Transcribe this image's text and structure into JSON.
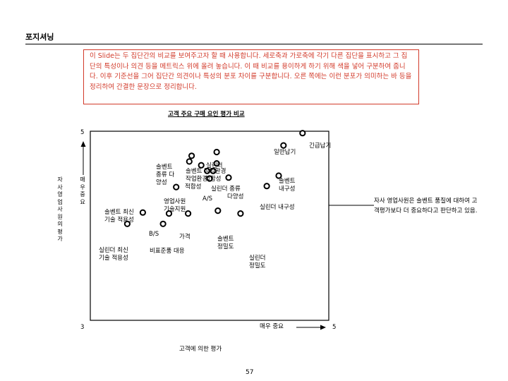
{
  "page": {
    "title": "포지셔닝",
    "note": "이 Slide는 두 집단간의 비교를 보여주고자 할 때 사용합니다. 세로축과 가로축에 각기 다른 집단을 표시하고 그 집단의 특성이나 의견 등을 메트릭스 위에 올려 놓습니다. 이 때 비교를 용이하게 하기 위해 색을 넣어 구분하여 줍니다. 이후 기준선을 그어 집단간 의견이나 특성의 분포 차이를 구분합니다. 오른 쪽에는 이런 분포가 의미하는 바 등을 정리하여 간결한 문장으로 정리합니다.",
    "side_text": "자사 영업사원은 솔벤트 품질에 대하여 고객평가보다 더 중요하다고 판단하고 있음.",
    "page_number": "57"
  },
  "chart_data": {
    "type": "scatter",
    "title": "고객 주요 구매 요인 평가 비교",
    "xlabel": "고객에 의한 평가",
    "ylabel": "자사 영업사원의 평가",
    "x_tick_labels": [
      "3",
      "5"
    ],
    "y_tick_labels": [
      "5",
      "3"
    ],
    "x_axis_marker": "매우 중요",
    "y_axis_marker": "매우 중요",
    "xlim": [
      3,
      5
    ],
    "ylim": [
      3,
      5
    ],
    "points": [
      {
        "x": 4.78,
        "y": 4.98,
        "label": "긴급납기"
      },
      {
        "x": 4.62,
        "y": 4.85,
        "label": "일반납기"
      },
      {
        "x": 4.06,
        "y": 4.78,
        "label": "실린더"
      },
      {
        "x": 3.85,
        "y": 4.74,
        "label": "솔벤트 종류 다양성"
      },
      {
        "x": 3.83,
        "y": 4.68,
        "label": "솔벤트 작업환경"
      },
      {
        "x": 3.93,
        "y": 4.64,
        "label": "작업환경"
      },
      {
        "x": 4.06,
        "y": 4.66,
        "label": "적합성"
      },
      {
        "x": 3.98,
        "y": 4.58,
        "label": "적합성"
      },
      {
        "x": 4.03,
        "y": 4.58,
        "label": "실린더 종류"
      },
      {
        "x": 4.0,
        "y": 4.5,
        "label": "A/S"
      },
      {
        "x": 4.16,
        "y": 4.51,
        "label": "다양성"
      },
      {
        "x": 4.58,
        "y": 4.53,
        "label": "솔벤트 내구성"
      },
      {
        "x": 3.72,
        "y": 4.41,
        "label": "영업사원 기술지원"
      },
      {
        "x": 4.48,
        "y": 4.42,
        "label": "실린더 내구성"
      },
      {
        "x": 3.44,
        "y": 4.14,
        "label": "솔벤트 최신기술 적용성"
      },
      {
        "x": 3.66,
        "y": 4.13,
        "label": "B/S"
      },
      {
        "x": 3.82,
        "y": 4.13,
        "label": "가격"
      },
      {
        "x": 4.07,
        "y": 4.16,
        "label": "솔벤트 정밀도"
      },
      {
        "x": 4.26,
        "y": 4.13,
        "label": "실린더 정밀도"
      },
      {
        "x": 3.61,
        "y": 4.02,
        "label": "비표준품 대응"
      },
      {
        "x": 3.31,
        "y": 4.02,
        "label": "실린더 최신기술 적용성"
      }
    ]
  }
}
